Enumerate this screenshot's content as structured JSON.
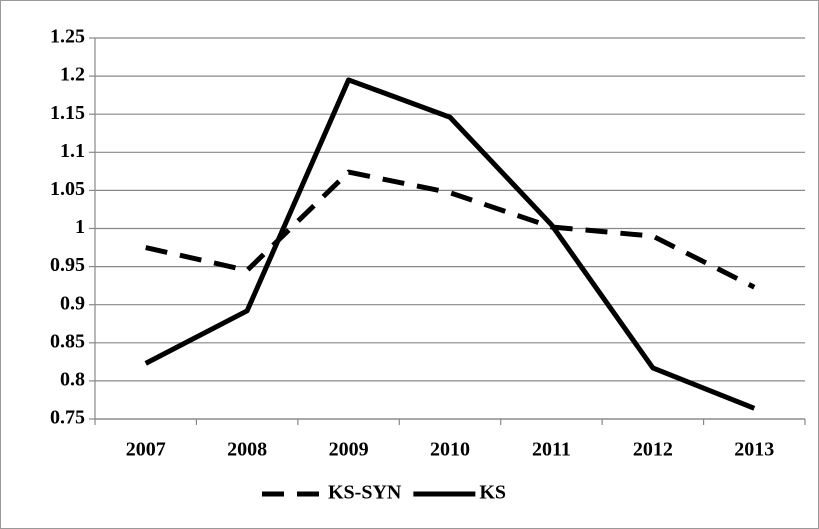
{
  "chart_data": {
    "type": "line",
    "categories": [
      "2007",
      "2008",
      "2009",
      "2010",
      "2011",
      "2012",
      "2013"
    ],
    "series": [
      {
        "name": "KS-SYN",
        "color": "#000000",
        "dashed": true,
        "values": [
          0.975,
          0.945,
          1.074,
          1.047,
          1.002,
          0.99,
          0.923
        ]
      },
      {
        "name": "KS",
        "color": "#000000",
        "dashed": false,
        "values": [
          0.823,
          0.892,
          1.195,
          1.146,
          1.005,
          0.817,
          0.764
        ]
      }
    ],
    "ylim": [
      0.75,
      1.25
    ],
    "yticks": [
      0.75,
      0.8,
      0.85,
      0.9,
      0.95,
      1,
      1.05,
      1.1,
      1.15,
      1.2,
      1.25
    ],
    "grid": true,
    "legend": "bottom"
  }
}
